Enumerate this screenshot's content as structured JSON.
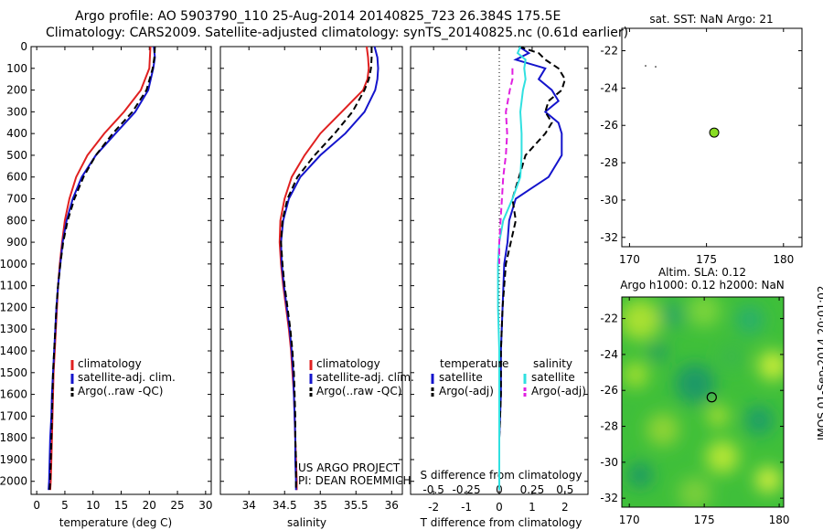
{
  "header": {
    "line1": "Argo profile: AO 5903790_110 25-Aug-2014 20140825_723 26.384S 175.5E",
    "line2": "Climatology: CARS2009. Satellite-adjusted climatology: synTS_20140825.nc (0.61d earlier)"
  },
  "timestamp_label": "IMOS 01-Sep-2014 20:01:02",
  "credits": {
    "line1": "US ARGO PROJECT",
    "line2": "PI: DEAN ROEMMICH"
  },
  "colors": {
    "climatology": "#e02020",
    "satellite": "#1414cc",
    "argo": "#000000",
    "sat_diff": "#30e0e0",
    "argo_sdiff": "#e020e0",
    "float": "#88dd22"
  },
  "chart_data": [
    {
      "id": "temperature",
      "type": "line",
      "xlabel": "temperature (deg C)",
      "xlim": [
        -1,
        31
      ],
      "xticks": [
        0,
        5,
        10,
        15,
        20,
        25,
        30
      ],
      "ylim": [
        0,
        2060
      ],
      "yticks": [
        0,
        100,
        200,
        300,
        400,
        500,
        600,
        700,
        800,
        900,
        1000,
        1100,
        1200,
        1300,
        1400,
        1500,
        1600,
        1700,
        1800,
        1900,
        2000
      ],
      "legend": {
        "position": "lower-right",
        "entries": [
          "climatology",
          "satellite-adj. clim.",
          "Argo(..raw -QC)"
        ]
      },
      "series": [
        {
          "name": "climatology",
          "color": "#e02020",
          "style": "solid",
          "depth": [
            0,
            100,
            200,
            300,
            400,
            500,
            600,
            700,
            800,
            900,
            1000,
            1100,
            1200,
            1300,
            1400,
            1500,
            1600,
            1700,
            1800,
            1900,
            2000,
            2040
          ],
          "value": [
            20.2,
            20.0,
            18.5,
            15.5,
            12.0,
            9.0,
            7.0,
            5.8,
            5.0,
            4.5,
            4.1,
            3.8,
            3.6,
            3.4,
            3.2,
            3.0,
            2.9,
            2.8,
            2.7,
            2.6,
            2.5,
            2.4
          ]
        },
        {
          "name": "satellite-adj. clim.",
          "color": "#1414cc",
          "style": "solid",
          "depth": [
            0,
            50,
            100,
            200,
            300,
            400,
            500,
            600,
            700,
            800,
            900,
            1000,
            1100,
            1200,
            1300,
            1400,
            1500,
            1600,
            1700,
            1800,
            1900,
            2000,
            2040
          ],
          "value": [
            20.8,
            21.0,
            20.7,
            19.8,
            17.5,
            14.0,
            10.5,
            8.0,
            6.4,
            5.3,
            4.6,
            4.2,
            3.8,
            3.5,
            3.3,
            3.1,
            2.9,
            2.7,
            2.6,
            2.4,
            2.3,
            2.2,
            2.1
          ]
        },
        {
          "name": "Argo(..raw -QC)",
          "color": "#000000",
          "style": "dashed",
          "depth": [
            0,
            50,
            100,
            200,
            300,
            400,
            500,
            600,
            700,
            800,
            900,
            1000,
            1100,
            1200,
            1300,
            1400,
            1500,
            1600,
            1700,
            1800,
            1900,
            2000,
            2040
          ],
          "value": [
            21.0,
            20.9,
            20.6,
            19.5,
            17.0,
            13.5,
            10.5,
            8.3,
            6.7,
            5.5,
            4.7,
            4.2,
            3.8,
            3.5,
            3.3,
            3.1,
            2.9,
            2.8,
            2.7,
            2.6,
            2.5,
            2.4,
            2.3
          ]
        }
      ]
    },
    {
      "id": "salinity",
      "type": "line",
      "xlabel": "salinity",
      "xlim": [
        33.6,
        36.15
      ],
      "xticks": [
        34,
        34.5,
        35,
        35.5,
        36
      ],
      "xtick_labels": [
        "34",
        "34.5",
        "35",
        "35.5",
        "36"
      ],
      "ylim": [
        0,
        2060
      ],
      "legend": {
        "position": "lower-right",
        "entries": [
          "climatology",
          "satellite-adj. clim.",
          "Argo(..raw -QC)"
        ]
      },
      "series": [
        {
          "name": "climatology",
          "color": "#e02020",
          "style": "solid",
          "depth": [
            0,
            50,
            100,
            150,
            200,
            300,
            400,
            500,
            600,
            700,
            800,
            900,
            1000,
            1100,
            1200,
            1300,
            1400,
            1500,
            1600,
            1700,
            1800,
            1900,
            2000,
            2040
          ],
          "value": [
            35.65,
            35.67,
            35.68,
            35.66,
            35.6,
            35.3,
            35.0,
            34.78,
            34.6,
            34.5,
            34.44,
            34.43,
            34.45,
            34.48,
            34.52,
            34.56,
            34.59,
            34.61,
            34.63,
            34.64,
            34.65,
            34.66,
            34.67,
            34.67
          ]
        },
        {
          "name": "satellite-adj. clim.",
          "color": "#1414cc",
          "style": "solid",
          "depth": [
            0,
            50,
            100,
            150,
            200,
            300,
            400,
            500,
            600,
            700,
            800,
            900,
            1000,
            1100,
            1200,
            1300,
            1400,
            1500,
            1600,
            1700,
            1800,
            1900,
            2000,
            2040
          ],
          "value": [
            35.76,
            35.8,
            35.81,
            35.8,
            35.77,
            35.62,
            35.35,
            35.0,
            34.72,
            34.56,
            34.48,
            34.45,
            34.46,
            34.49,
            34.53,
            34.57,
            34.6,
            34.62,
            34.63,
            34.64,
            34.65,
            34.65,
            34.66,
            34.66
          ]
        },
        {
          "name": "Argo(..raw -QC)",
          "color": "#000000",
          "style": "dashed",
          "depth": [
            0,
            50,
            100,
            150,
            200,
            300,
            400,
            500,
            600,
            700,
            800,
            900,
            1000,
            1100,
            1200,
            1300,
            1400,
            1500,
            1600,
            1700,
            1800,
            1900,
            2000,
            2040
          ],
          "value": [
            35.72,
            35.72,
            35.71,
            35.68,
            35.62,
            35.45,
            35.2,
            34.92,
            34.68,
            34.54,
            34.47,
            34.45,
            34.47,
            34.5,
            34.54,
            34.58,
            34.61,
            34.63,
            34.64,
            34.65,
            34.65,
            34.66,
            34.66,
            34.66
          ]
        }
      ]
    },
    {
      "id": "difference",
      "type": "line",
      "xlabel": "T difference from climatology",
      "x2label": "S difference from climatology",
      "xlim": [
        -2.7,
        2.7
      ],
      "xticks": [
        -2,
        -1,
        0,
        1,
        2
      ],
      "x2ticks": [
        -0.5,
        -0.25,
        0,
        0.25,
        0.5
      ],
      "x2tick_labels": [
        "-0.5",
        "-0.25",
        "0",
        "0.25",
        "0.5"
      ],
      "ylim": [
        0,
        2060
      ],
      "legend": {
        "position": "lower-center",
        "temperature_header": "temperature",
        "salinity_header": "salinity",
        "entries": [
          "satellite",
          "Argo(-adj)",
          "satellite",
          "Argo(-adj)"
        ]
      },
      "series": [
        {
          "name": "satellite",
          "group": "temperature",
          "color": "#1414cc",
          "style": "solid",
          "depth": [
            0,
            30,
            60,
            100,
            150,
            200,
            250,
            300,
            350,
            400,
            500,
            600,
            650,
            700,
            800,
            900,
            1000,
            1200,
            1400,
            1600,
            1800,
            2000,
            2040
          ],
          "value": [
            0.6,
            0.9,
            0.5,
            1.4,
            1.2,
            1.6,
            1.8,
            1.4,
            1.8,
            1.9,
            1.9,
            1.5,
            1.0,
            0.5,
            0.3,
            0.25,
            0.15,
            0.1,
            0.05,
            0.05,
            0.0,
            0.0,
            0.0
          ]
        },
        {
          "name": "Argo(-adj)",
          "group": "temperature",
          "color": "#000000",
          "style": "dashed",
          "depth": [
            0,
            30,
            60,
            100,
            150,
            200,
            250,
            300,
            350,
            400,
            500,
            600,
            700,
            800,
            900,
            1000,
            1200,
            1400,
            1600,
            1800,
            2000,
            2040
          ],
          "value": [
            0.6,
            1.2,
            1.4,
            1.8,
            2.0,
            1.9,
            1.5,
            1.4,
            1.6,
            1.4,
            0.8,
            0.6,
            0.4,
            0.5,
            0.35,
            0.2,
            0.1,
            0.05,
            0.05,
            0.0,
            0.0,
            0.0
          ]
        },
        {
          "name": "satellite",
          "group": "salinity",
          "color": "#30e0e0",
          "style": "solid",
          "depth": [
            0,
            30,
            60,
            100,
            150,
            200,
            300,
            400,
            500,
            600,
            700,
            800,
            900,
            1000,
            1200,
            1400,
            1600,
            1800,
            2000,
            2040
          ],
          "value": [
            0.16,
            0.14,
            0.2,
            0.19,
            0.2,
            0.18,
            0.16,
            0.17,
            0.17,
            0.16,
            0.1,
            0.03,
            0.0,
            -0.01,
            -0.01,
            0.0,
            0.0,
            0.0,
            0.0,
            0.0
          ]
        },
        {
          "name": "Argo(-adj)",
          "group": "salinity",
          "color": "#e020e0",
          "style": "dashed",
          "depth": [
            100,
            150,
            200,
            300,
            400,
            500,
            600,
            700,
            800,
            900,
            1000
          ],
          "value": [
            0.1,
            0.1,
            0.08,
            0.05,
            0.06,
            0.05,
            0.03,
            0.02,
            0.01,
            0.0,
            0.0
          ]
        }
      ]
    },
    {
      "id": "sst",
      "type": "scatter",
      "title": "sat. SST: NaN Argo: 21",
      "xlim": [
        169.5,
        181.2
      ],
      "ylim": [
        -32.5,
        -20.8
      ],
      "xticks": [
        170,
        175,
        180
      ],
      "yticks": [
        -22,
        -24,
        -26,
        -28,
        -30,
        -32
      ],
      "points": [
        {
          "x": 175.5,
          "y": -26.384,
          "color": "#88dd22"
        }
      ]
    },
    {
      "id": "sla",
      "type": "heatmap",
      "title_line1": "Altim. SLA: 0.12",
      "title_line2": "Argo h1000: 0.12 h2000: NaN",
      "xlim": [
        169.5,
        180.3
      ],
      "ylim": [
        -32.5,
        -20.8
      ],
      "xticks": [
        170,
        175,
        180
      ],
      "yticks": [
        -22,
        -24,
        -26,
        -28,
        -30,
        -32
      ],
      "points": [
        {
          "x": 175.5,
          "y": -26.384
        }
      ]
    }
  ]
}
